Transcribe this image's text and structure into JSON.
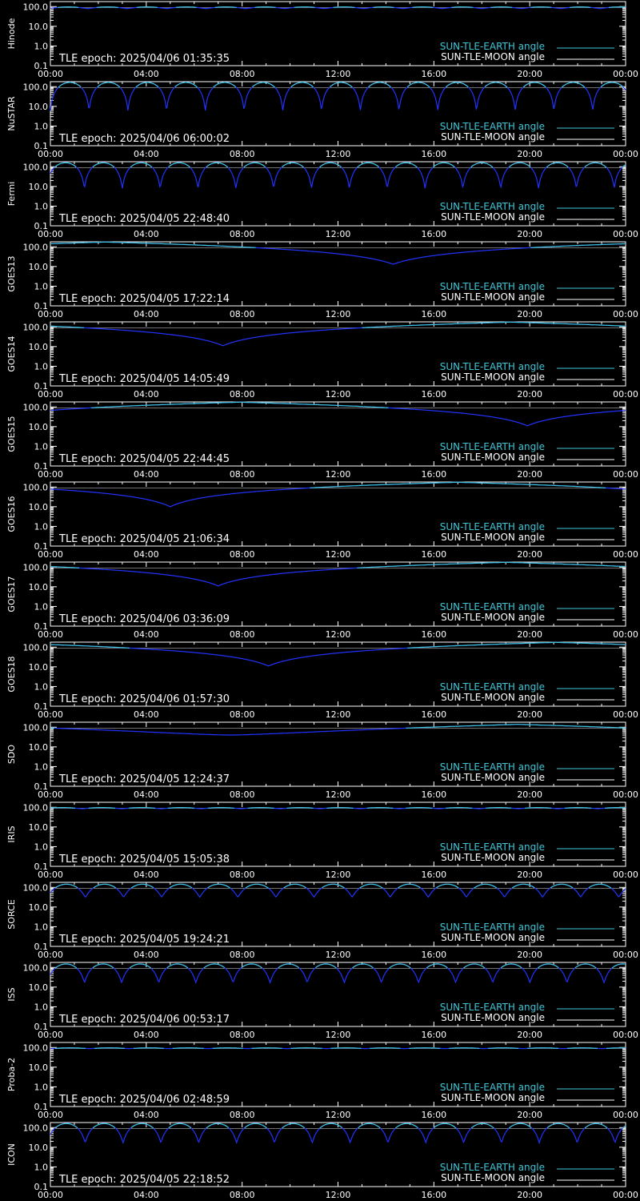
{
  "colors": {
    "background": "#000000",
    "axes": "#ffffff",
    "earth": "#3ec6d8",
    "moon": "#ffffff",
    "limb": "#2233ff"
  },
  "legend": {
    "earth_label": "SUN-TLE-EARTH angle",
    "moon_label": "SUN-TLE-MOON angle"
  },
  "x_ticks": [
    "00:00",
    "04:00",
    "08:00",
    "12:00",
    "16:00",
    "20:00",
    "00:00"
  ],
  "y_ticks": [
    "100.0",
    "10.0",
    "1.0",
    "0.1"
  ],
  "chart_data": [
    {
      "type": "line",
      "ylabel": "Hinode",
      "epoch": "TLE epoch: 2025/04/06 01:35:35",
      "yscale": "log",
      "ylim": [
        0.1,
        180
      ],
      "xlim": [
        0,
        24
      ],
      "x_tick_hours": [
        0,
        4,
        8,
        12,
        16,
        20,
        24
      ],
      "orbits": 14.6,
      "max_deg": 97,
      "min_deg": 80,
      "phase": 0.05
    },
    {
      "type": "line",
      "ylabel": "NuSTAR",
      "epoch": "TLE epoch: 2025/04/06 06:00:02",
      "yscale": "log",
      "ylim": [
        0.1,
        180
      ],
      "xlim": [
        0,
        24
      ],
      "x_tick_hours": [
        0,
        4,
        8,
        12,
        16,
        20,
        24
      ],
      "orbits": 14.85,
      "max_deg": 165,
      "min_deg": 6,
      "phase": 0.0
    },
    {
      "type": "line",
      "ylabel": "Fermi",
      "epoch": "TLE epoch: 2025/04/05 22:48:40",
      "yscale": "log",
      "ylim": [
        0.1,
        180
      ],
      "xlim": [
        0,
        24
      ],
      "x_tick_hours": [
        0,
        4,
        8,
        12,
        16,
        20,
        24
      ],
      "orbits": 15.2,
      "max_deg": 160,
      "min_deg": 8,
      "phase": 0.1
    },
    {
      "type": "line",
      "ylabel": "GOES13",
      "epoch": "TLE epoch: 2025/04/05 17:22:14",
      "yscale": "log",
      "ylim": [
        0.1,
        180
      ],
      "xlim": [
        0,
        24
      ],
      "x_tick_hours": [
        0,
        4,
        8,
        12,
        16,
        20,
        24
      ],
      "geo_min_hour": 14.3,
      "max_deg": 175,
      "min_deg": 13
    },
    {
      "type": "line",
      "ylabel": "GOES14",
      "epoch": "TLE epoch: 2025/04/05 14:05:49",
      "yscale": "log",
      "ylim": [
        0.1,
        180
      ],
      "xlim": [
        0,
        24
      ],
      "x_tick_hours": [
        0,
        4,
        8,
        12,
        16,
        20,
        24
      ],
      "geo_min_hour": 7.2,
      "max_deg": 175,
      "min_deg": 11
    },
    {
      "type": "line",
      "ylabel": "GOES15",
      "epoch": "TLE epoch: 2025/04/05 22:44:45",
      "yscale": "log",
      "ylim": [
        0.1,
        180
      ],
      "xlim": [
        0,
        24
      ],
      "x_tick_hours": [
        0,
        4,
        8,
        12,
        16,
        20,
        24
      ],
      "geo_min_hour": 19.9,
      "max_deg": 175,
      "min_deg": 11
    },
    {
      "type": "line",
      "ylabel": "GOES16",
      "epoch": "TLE epoch: 2025/04/05 21:06:34",
      "yscale": "log",
      "ylim": [
        0.1,
        180
      ],
      "xlim": [
        0,
        24
      ],
      "x_tick_hours": [
        0,
        4,
        8,
        12,
        16,
        20,
        24
      ],
      "geo_min_hour": 5.0,
      "max_deg": 175,
      "min_deg": 10
    },
    {
      "type": "line",
      "ylabel": "GOES17",
      "epoch": "TLE epoch: 2025/04/06 03:36:09",
      "yscale": "log",
      "ylim": [
        0.1,
        180
      ],
      "xlim": [
        0,
        24
      ],
      "x_tick_hours": [
        0,
        4,
        8,
        12,
        16,
        20,
        24
      ],
      "geo_min_hour": 7.0,
      "max_deg": 175,
      "min_deg": 11
    },
    {
      "type": "line",
      "ylabel": "GOES18",
      "epoch": "TLE epoch: 2025/04/06 01:57:30",
      "yscale": "log",
      "ylim": [
        0.1,
        180
      ],
      "xlim": [
        0,
        24
      ],
      "x_tick_hours": [
        0,
        4,
        8,
        12,
        16,
        20,
        24
      ],
      "geo_min_hour": 9.1,
      "max_deg": 175,
      "min_deg": 11
    },
    {
      "type": "line",
      "ylabel": "SDO",
      "epoch": "TLE epoch: 2025/04/05 12:24:37",
      "yscale": "log",
      "ylim": [
        0.1,
        180
      ],
      "xlim": [
        0,
        24
      ],
      "x_tick_hours": [
        0,
        4,
        8,
        12,
        16,
        20,
        24
      ],
      "sdo_min_hour": 7.5,
      "max_deg": 140,
      "min_deg": 40
    },
    {
      "type": "line",
      "ylabel": "IRIS",
      "epoch": "TLE epoch: 2025/04/05 15:05:38",
      "yscale": "log",
      "ylim": [
        0.1,
        180
      ],
      "xlim": [
        0,
        24
      ],
      "x_tick_hours": [
        0,
        4,
        8,
        12,
        16,
        20,
        24
      ],
      "orbits": 14.5,
      "max_deg": 97,
      "min_deg": 85,
      "phase": 0.2
    },
    {
      "type": "line",
      "ylabel": "SORCE",
      "epoch": "TLE epoch: 2025/04/05 19:24:21",
      "yscale": "log",
      "ylim": [
        0.1,
        180
      ],
      "xlim": [
        0,
        24
      ],
      "x_tick_hours": [
        0,
        4,
        8,
        12,
        16,
        20,
        24
      ],
      "orbits": 15.1,
      "max_deg": 145,
      "min_deg": 32,
      "phase": 0.08
    },
    {
      "type": "line",
      "ylabel": "ISS",
      "epoch": "TLE epoch: 2025/04/06 00:53:17",
      "yscale": "log",
      "ylim": [
        0.1,
        180
      ],
      "xlim": [
        0,
        24
      ],
      "x_tick_hours": [
        0,
        4,
        8,
        12,
        16,
        20,
        24
      ],
      "orbits": 15.5,
      "max_deg": 150,
      "min_deg": 17,
      "phase": 0.08
    },
    {
      "type": "line",
      "ylabel": "Proba-2",
      "epoch": "TLE epoch: 2025/04/06 02:48:59",
      "yscale": "log",
      "ylim": [
        0.1,
        180
      ],
      "xlim": [
        0,
        24
      ],
      "x_tick_hours": [
        0,
        4,
        8,
        12,
        16,
        20,
        24
      ],
      "orbits": 14.6,
      "max_deg": 96,
      "min_deg": 88,
      "phase": 0.0
    },
    {
      "type": "line",
      "ylabel": "ICON",
      "epoch": "TLE epoch: 2025/04/05 22:18:52",
      "yscale": "log",
      "ylim": [
        0.1,
        180
      ],
      "xlim": [
        0,
        24
      ],
      "x_tick_hours": [
        0,
        4,
        8,
        12,
        16,
        20,
        24
      ],
      "orbits": 15.2,
      "max_deg": 160,
      "min_deg": 17,
      "phase": 0.08
    }
  ]
}
